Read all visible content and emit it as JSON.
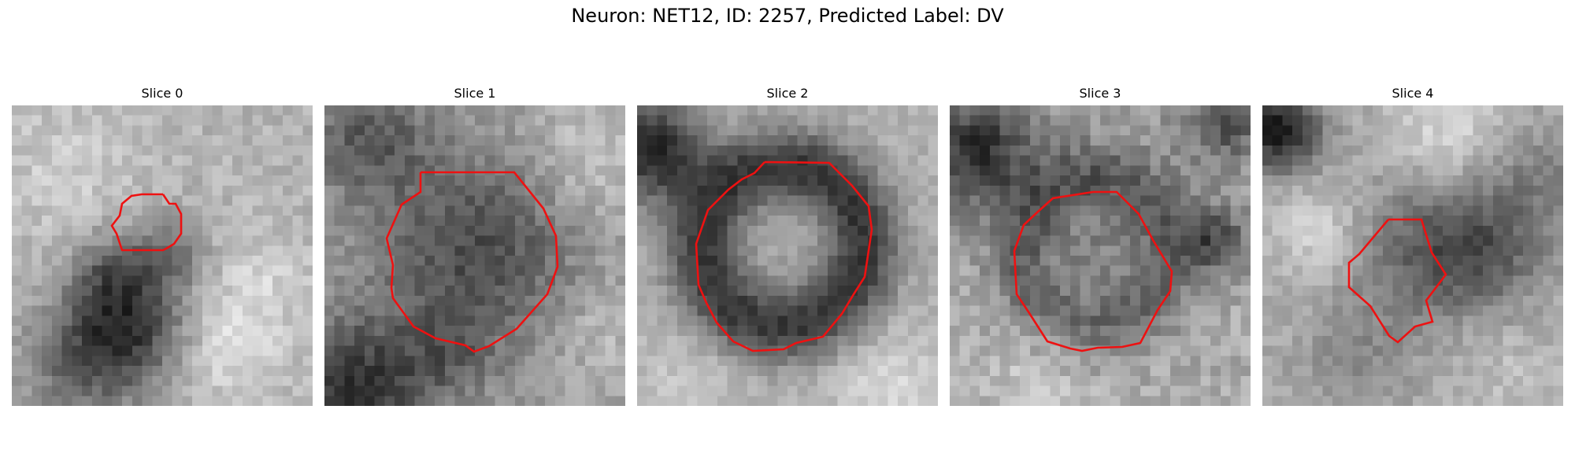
{
  "figure": {
    "title": "Neuron: NET12, ID: 2257, Predicted Label: DV"
  },
  "panels": [
    {
      "title": "Slice 0"
    },
    {
      "title": "Slice 1"
    },
    {
      "title": "Slice 2"
    },
    {
      "title": "Slice 3"
    },
    {
      "title": "Slice 4"
    }
  ],
  "colors": {
    "roi_outline": "#ee1111",
    "background": "#ffffff",
    "colormap": "gray"
  }
}
